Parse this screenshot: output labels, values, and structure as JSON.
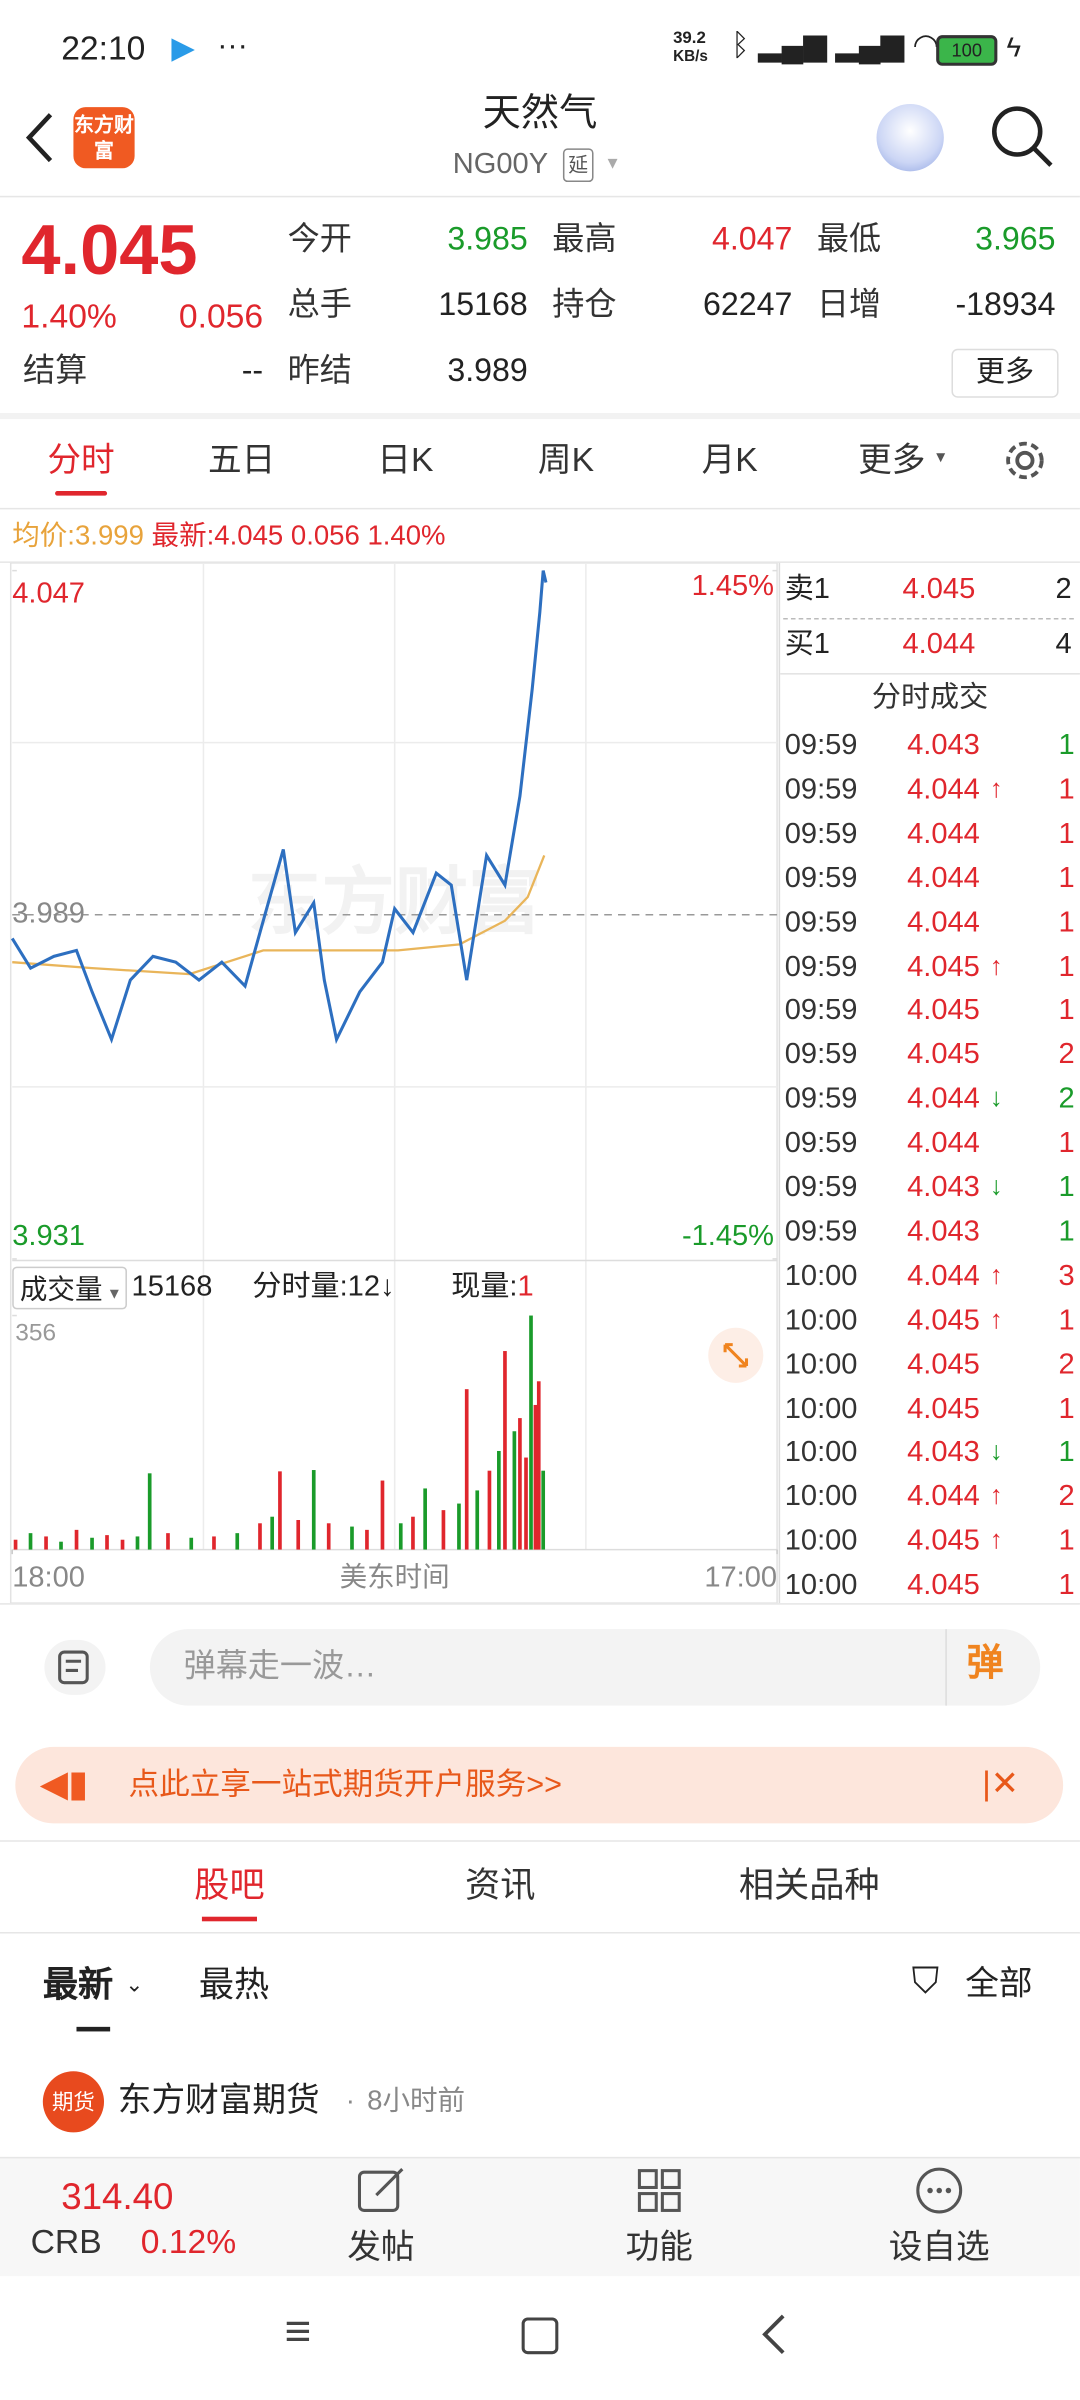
{
  "status_bar": {
    "time": "22:10",
    "net_speed": "39.2",
    "net_unit": "KB/s",
    "battery": "100"
  },
  "header": {
    "logo": "东方财富",
    "title": "天然气",
    "code": "NG00Y",
    "tag": "延"
  },
  "quote": {
    "price": "4.045",
    "change_pct": "1.40%",
    "change": "0.056",
    "fields": [
      {
        "label": "今开",
        "value": "3.985"
      },
      {
        "label": "最高",
        "value": "4.047"
      },
      {
        "label": "最低",
        "value": "3.965"
      },
      {
        "label": "总手",
        "value": "15168"
      },
      {
        "label": "持仓",
        "value": "62247"
      },
      {
        "label": "日增",
        "value": "-18934"
      },
      {
        "label": "结算",
        "value": "--"
      },
      {
        "label": "昨结",
        "value": "3.989"
      }
    ],
    "more": "更多"
  },
  "tabs": [
    "分时",
    "五日",
    "日K",
    "周K",
    "月K",
    "更多"
  ],
  "info_line": {
    "avg_label": "均价:",
    "avg": "3.999",
    "latest_label": "最新:",
    "latest": "4.045",
    "change": "0.056",
    "change_pct": "1.40%"
  },
  "chart_data": {
    "type": "line",
    "watermark": "东方财富",
    "xlim": [
      0,
      1380
    ],
    "xticks": [
      {
        "value": 0,
        "label": "18:00"
      },
      {
        "value": 1380,
        "label": "17:00"
      }
    ],
    "xlabel": "美东时间",
    "ylim": [
      3.931,
      4.047
    ],
    "yticks": [
      3.931,
      3.989,
      4.047
    ],
    "y2lim": [
      -1.45,
      1.45
    ],
    "y2ticks": [
      {
        "value": 1.45,
        "label": "1.45%"
      },
      {
        "value": -1.45,
        "label": "-1.45%"
      }
    ],
    "series": [
      {
        "name": "最新",
        "color": "#2d6fc0",
        "x": [
          0,
          33,
          75,
          116,
          144,
          179,
          213,
          254,
          295,
          337,
          378,
          420,
          453,
          489,
          511,
          544,
          563,
          585,
          627,
          668,
          690,
          723,
          765,
          792,
          820,
          856,
          889,
          916,
          938,
          952,
          958,
          963
        ],
        "values": [
          3.985,
          3.98,
          3.982,
          3.983,
          3.976,
          3.968,
          3.978,
          3.982,
          3.981,
          3.978,
          3.981,
          3.977,
          3.988,
          4.0,
          3.986,
          3.991,
          3.978,
          3.968,
          3.976,
          3.981,
          3.99,
          3.986,
          3.996,
          3.994,
          3.978,
          3.999,
          3.994,
          4.009,
          4.027,
          4.04,
          4.047,
          4.045
        ]
      },
      {
        "name": "均价",
        "color": "#e9b55a",
        "x": [
          0,
          144,
          320,
          453,
          530,
          696,
          807,
          889,
          930,
          960
        ],
        "values": [
          3.981,
          3.98,
          3.979,
          3.983,
          3.983,
          3.983,
          3.984,
          3.988,
          3.992,
          3.999
        ]
      }
    ]
  },
  "volume": {
    "label": "成交量",
    "total": "15168",
    "minute_label": "分时量:",
    "minute": "12",
    "minute_arrow": "↓",
    "now_label": "现量:",
    "now": "1",
    "ylim": [
      0,
      356
    ],
    "yticks": [
      356
    ],
    "x": [
      6,
      33,
      61,
      88,
      116,
      144,
      171,
      199,
      226,
      248,
      281,
      323,
      364,
      406,
      447,
      469,
      483,
      516,
      544,
      571,
      613,
      640,
      668,
      701,
      723,
      745,
      778,
      806,
      820,
      839,
      861,
      878,
      889,
      906,
      916,
      927,
      936,
      944,
      950,
      958
    ],
    "values": [
      15,
      25,
      20,
      12,
      30,
      18,
      22,
      15,
      20,
      116,
      25,
      18,
      20,
      25,
      40,
      50,
      119,
      45,
      121,
      40,
      35,
      30,
      105,
      40,
      50,
      93,
      60,
      70,
      244,
      90,
      120,
      150,
      302,
      180,
      200,
      140,
      356,
      220,
      256,
      120
    ],
    "colors": [
      "#e0262d",
      "#1a9b2a",
      "#e0262d",
      "#1a9b2a",
      "#e0262d",
      "#1a9b2a",
      "#e0262d",
      "#e0262d",
      "#1a9b2a",
      "#1a9b2a",
      "#e0262d",
      "#1a9b2a",
      "#e0262d",
      "#1a9b2a",
      "#e0262d",
      "#1a9b2a",
      "#e0262d",
      "#e0262d",
      "#1a9b2a",
      "#e0262d",
      "#1a9b2a",
      "#e0262d",
      "#e0262d",
      "#1a9b2a",
      "#e0262d",
      "#1a9b2a",
      "#e0262d",
      "#1a9b2a",
      "#e0262d",
      "#1a9b2a",
      "#e0262d",
      "#1a9b2a",
      "#e0262d",
      "#1a9b2a",
      "#e0262d",
      "#e0262d",
      "#1a9b2a",
      "#e0262d",
      "#e0262d",
      "#1a9b2a"
    ]
  },
  "order_book": {
    "sell": {
      "label": "卖1",
      "price": "4.045",
      "volume": "2"
    },
    "buy": {
      "label": "买1",
      "price": "4.044",
      "volume": "4"
    },
    "trades_title": "分时成交",
    "trades": [
      [
        "09:59",
        "4.043",
        "",
        "1"
      ],
      [
        "09:59",
        "4.044",
        "↑",
        "1"
      ],
      [
        "09:59",
        "4.044",
        "",
        "1"
      ],
      [
        "09:59",
        "4.044",
        "",
        "1"
      ],
      [
        "09:59",
        "4.044",
        "",
        "1"
      ],
      [
        "09:59",
        "4.045",
        "↑",
        "1"
      ],
      [
        "09:59",
        "4.045",
        "",
        "1"
      ],
      [
        "09:59",
        "4.045",
        "",
        "2"
      ],
      [
        "09:59",
        "4.044",
        "↓",
        "2"
      ],
      [
        "09:59",
        "4.044",
        "",
        "1"
      ],
      [
        "09:59",
        "4.043",
        "↓",
        "1"
      ],
      [
        "09:59",
        "4.043",
        "",
        "1"
      ],
      [
        "10:00",
        "4.044",
        "↑",
        "3"
      ],
      [
        "10:00",
        "4.045",
        "↑",
        "1"
      ],
      [
        "10:00",
        "4.045",
        "",
        "2"
      ],
      [
        "10:00",
        "4.045",
        "",
        "1"
      ],
      [
        "10:00",
        "4.043",
        "↓",
        "1"
      ],
      [
        "10:00",
        "4.044",
        "↑",
        "2"
      ],
      [
        "10:00",
        "4.045",
        "↑",
        "1"
      ],
      [
        "10:00",
        "4.045",
        "",
        "1"
      ]
    ],
    "trade_volume_colors": [
      "#1a9b2a",
      "#e0262d",
      "#e0262d",
      "#e0262d",
      "#e0262d",
      "#e0262d",
      "#e0262d",
      "#e0262d",
      "#1a9b2a",
      "#e0262d",
      "#1a9b2a",
      "#1a9b2a",
      "#e0262d",
      "#e0262d",
      "#e0262d",
      "#e0262d",
      "#1a9b2a",
      "#e0262d",
      "#e0262d",
      "#e0262d"
    ]
  },
  "comment": {
    "placeholder": "弹幕走一波…",
    "button": "弹"
  },
  "banner": {
    "text": "点此立享一站式期货开户服务>>"
  },
  "section_tabs": [
    "股吧",
    "资讯",
    "相关品种"
  ],
  "filters": {
    "latest": "最新",
    "hot": "最热",
    "all": "全部"
  },
  "post": {
    "avatar": "期货",
    "author": "东方财富期货",
    "time": "8小时前"
  },
  "bottom_bar": {
    "index_value": "314.40",
    "index_name": "CRB",
    "index_change": "0.12%",
    "actions": [
      "发帖",
      "功能",
      "设自选"
    ]
  }
}
